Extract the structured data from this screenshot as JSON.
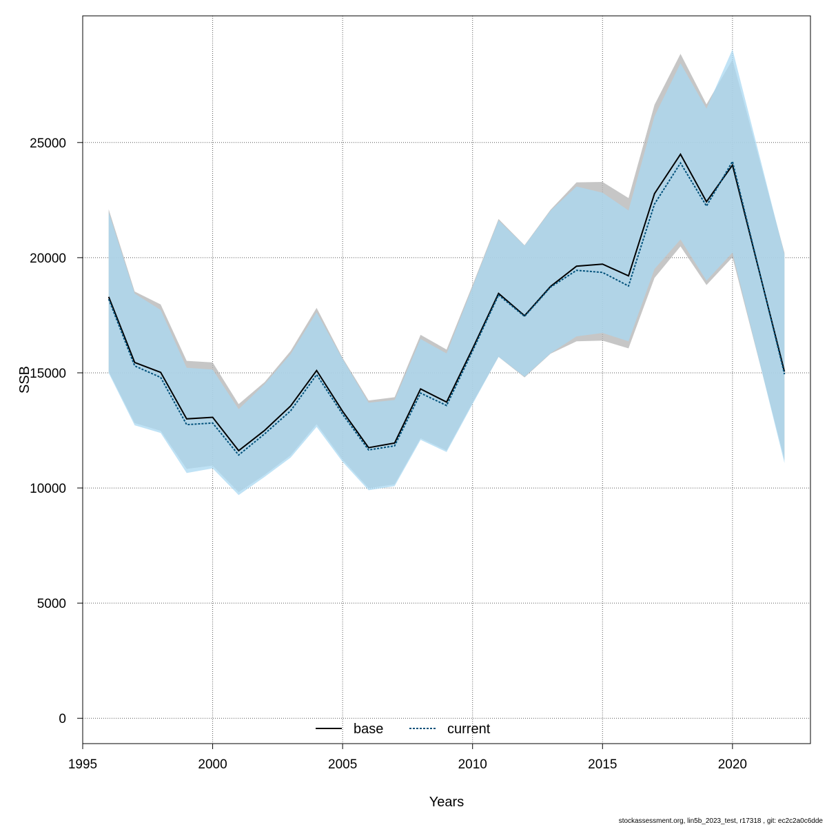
{
  "chart_data": {
    "type": "line",
    "title": "",
    "xlabel": "Years",
    "ylabel": "SSB",
    "xlim": [
      1995,
      2023
    ],
    "ylim": [
      -1100,
      30500
    ],
    "xticks": [
      1995,
      2000,
      2005,
      2010,
      2015,
      2020
    ],
    "yticks": [
      0,
      5000,
      10000,
      15000,
      20000,
      25000
    ],
    "grid": true,
    "legend_position": "bottom-center",
    "x": [
      1996,
      1997,
      1998,
      1999,
      2000,
      2001,
      2002,
      2003,
      2004,
      2005,
      2006,
      2007,
      2008,
      2009,
      2010,
      2011,
      2012,
      2013,
      2014,
      2015,
      2016,
      2017,
      2018,
      2019,
      2020,
      2022
    ],
    "series": [
      {
        "name": "base",
        "color": "#000000",
        "linestyle": "solid",
        "band_color": "#b3b3b3",
        "values": [
          18300,
          15450,
          15020,
          13000,
          13070,
          11620,
          12500,
          13560,
          15100,
          13330,
          11750,
          11950,
          14300,
          13730,
          16050,
          18450,
          17480,
          18750,
          19630,
          19720,
          19210,
          22780,
          24490,
          22430,
          24020,
          15050
        ],
        "upper": [
          22100,
          18530,
          17970,
          15520,
          15450,
          13640,
          14600,
          15950,
          17820,
          15650,
          13800,
          13940,
          16650,
          16010,
          18810,
          21680,
          20540,
          22080,
          23270,
          23290,
          22590,
          26640,
          28850,
          26660,
          28600,
          20210
        ],
        "lower": [
          15050,
          12820,
          12480,
          10830,
          10970,
          9820,
          10570,
          11420,
          12770,
          11230,
          9990,
          10160,
          12160,
          11630,
          13700,
          15690,
          14800,
          15830,
          16370,
          16400,
          16060,
          19120,
          20490,
          18810,
          20020,
          11230
        ]
      },
      {
        "name": "current",
        "color": "#00507a",
        "linestyle": "dashed",
        "band_color": "#a9d8f2",
        "values": [
          18200,
          15300,
          14800,
          12750,
          12820,
          11430,
          12350,
          13350,
          14920,
          13200,
          11650,
          11830,
          14120,
          13580,
          15950,
          18380,
          17450,
          18720,
          19450,
          19360,
          18770,
          22330,
          24110,
          22240,
          24180,
          14940
        ],
        "upper": [
          21980,
          18440,
          17730,
          15220,
          15140,
          13420,
          14510,
          15810,
          17630,
          15600,
          13700,
          13820,
          16470,
          15840,
          18730,
          21620,
          20520,
          22040,
          23090,
          22820,
          22050,
          26140,
          28440,
          26470,
          29050,
          20140
        ],
        "lower": [
          14990,
          12720,
          12390,
          10650,
          10850,
          9690,
          10480,
          11320,
          12650,
          11130,
          9900,
          10080,
          12090,
          11560,
          13640,
          15700,
          14830,
          15850,
          16580,
          16730,
          16370,
          19510,
          20790,
          19000,
          20220,
          11080
        ]
      }
    ]
  },
  "footer_text": "stockassessment.org, lin5b_2023_test, r17318 , git: ec2c2a0c6dde"
}
